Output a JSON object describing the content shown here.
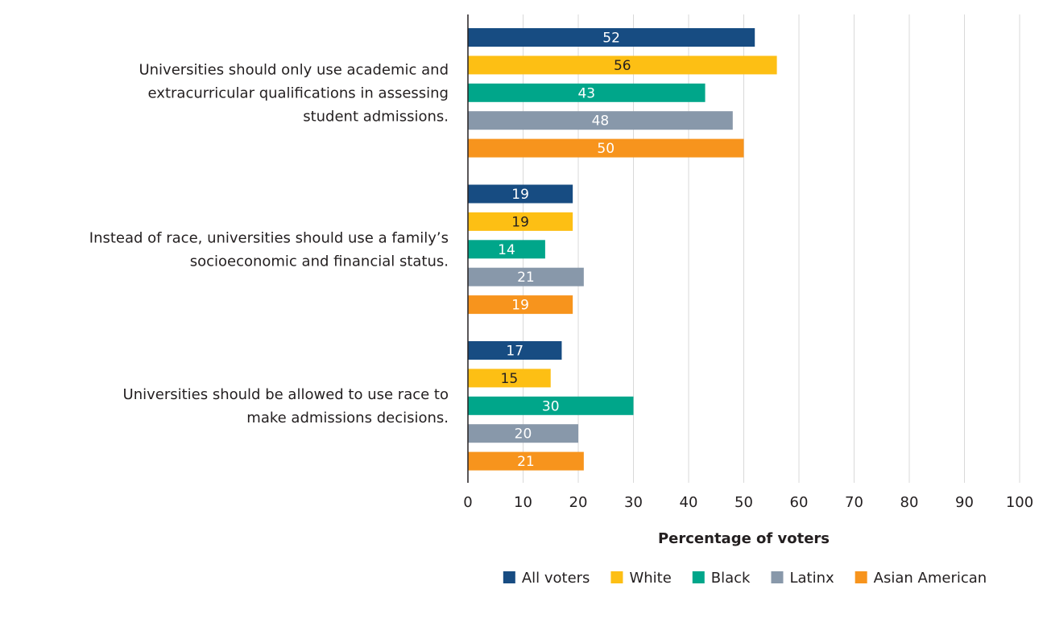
{
  "chart_data": {
    "type": "bar",
    "orientation": "horizontal",
    "title": "",
    "xlabel": "Percentage of voters",
    "ylabel": "",
    "xlim": [
      0,
      100
    ],
    "x_ticks": [
      0,
      10,
      20,
      30,
      40,
      50,
      60,
      70,
      80,
      90,
      100
    ],
    "grid": true,
    "legend_position": "bottom",
    "categories": [
      [
        "Universities should only use academic and",
        "extracurricular qualifications in assessing",
        "student admissions."
      ],
      [
        "Instead of race, universities should use a family’s",
        "socioeconomic and financial status."
      ],
      [
        "Universities should be allowed to use race to",
        "make admissions decisions."
      ]
    ],
    "series": [
      {
        "name": "All voters",
        "color": "#174c82",
        "label_color": "#ffffff",
        "values": [
          52,
          19,
          17
        ]
      },
      {
        "name": "White",
        "color": "#fdbf14",
        "label_color": "#231f20",
        "values": [
          56,
          19,
          15
        ]
      },
      {
        "name": "Black",
        "color": "#00a68a",
        "label_color": "#ffffff",
        "values": [
          43,
          14,
          30
        ]
      },
      {
        "name": "Latinx",
        "color": "#8898aa",
        "label_color": "#ffffff",
        "values": [
          48,
          21,
          20
        ]
      },
      {
        "name": "Asian American",
        "color": "#f7941d",
        "label_color": "#ffffff",
        "values": [
          50,
          19,
          21
        ]
      }
    ]
  }
}
